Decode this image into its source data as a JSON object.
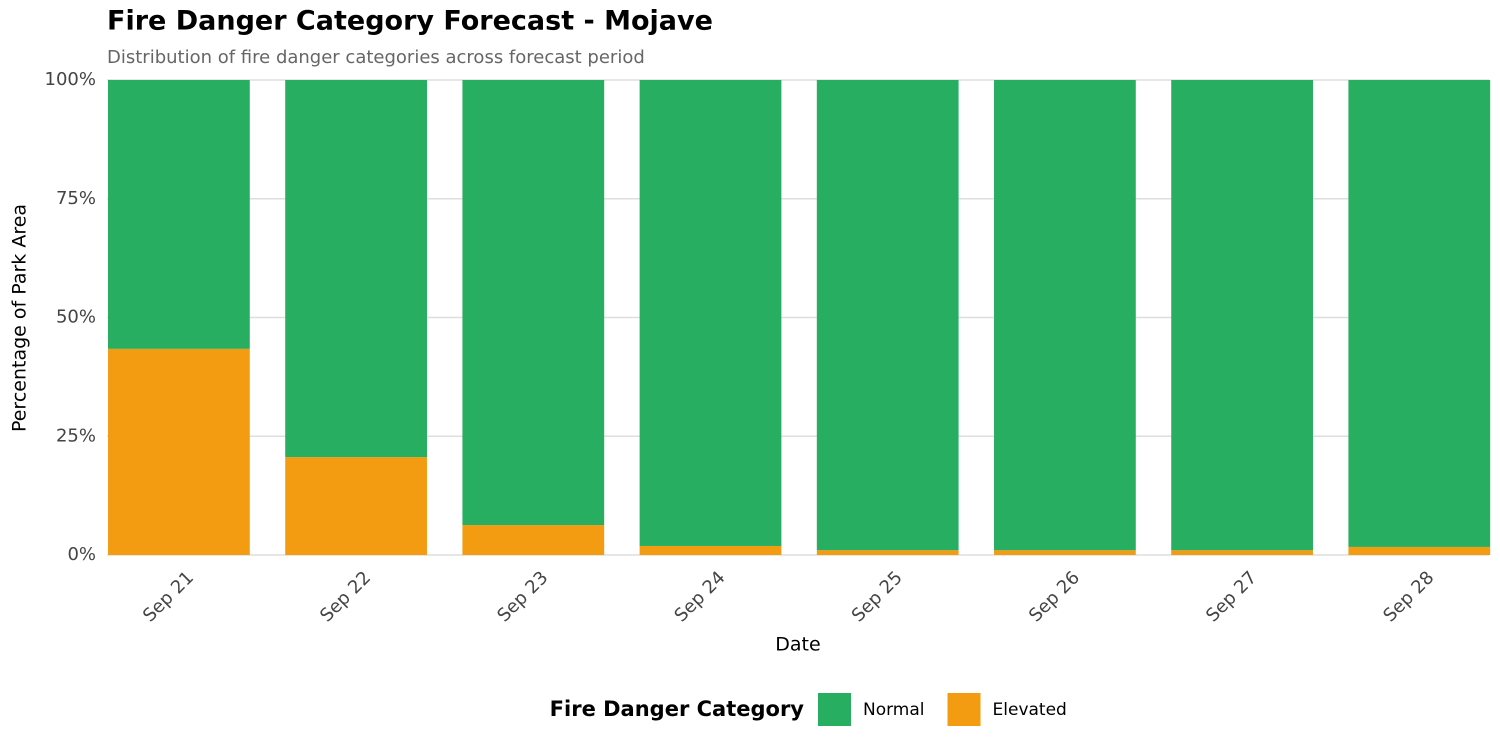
{
  "chart_data": {
    "type": "stacked_bar",
    "title": "Fire Danger Category Forecast - Mojave",
    "subtitle": "Distribution of fire danger categories across forecast period",
    "x_label": "Date",
    "y_label": "Percentage of Park Area",
    "legend_title": "Fire Danger Category",
    "categories": [
      "Sep 21",
      "Sep 22",
      "Sep 23",
      "Sep 24",
      "Sep 25",
      "Sep 26",
      "Sep 27",
      "Sep 28"
    ],
    "series": [
      {
        "name": "Normal",
        "color": "#27ae60",
        "values": [
          56.6,
          79.4,
          93.7,
          98.1,
          99.0,
          99.0,
          99.0,
          98.3
        ]
      },
      {
        "name": "Elevated",
        "color": "#f39c12",
        "values": [
          43.4,
          20.6,
          6.3,
          1.9,
          1.0,
          1.0,
          1.0,
          1.7
        ]
      }
    ],
    "ylim": [
      0,
      100
    ],
    "yticks": [
      {
        "value": 0,
        "label": "0%"
      },
      {
        "value": 25,
        "label": "25%"
      },
      {
        "value": 50,
        "label": "50%"
      },
      {
        "value": 75,
        "label": "75%"
      },
      {
        "value": 100,
        "label": "100%"
      }
    ],
    "grid": true,
    "legend_position": "bottom"
  }
}
